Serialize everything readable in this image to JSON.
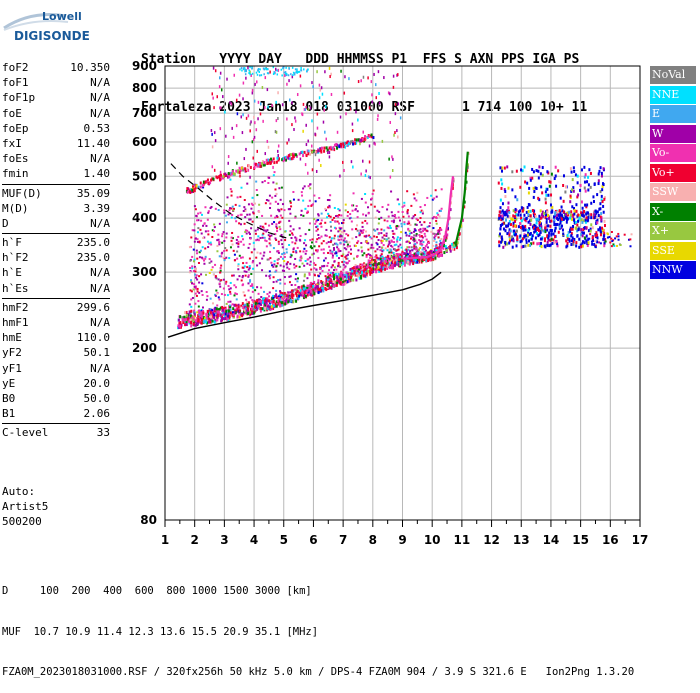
{
  "logo": {
    "line1": "Lowell",
    "line2": "DIGISONDE"
  },
  "header": {
    "labels": [
      "Station",
      "YYYY DAY",
      "DDD HHMMSS P1",
      "FFS S AXN PPS IGA PS"
    ],
    "values": [
      "Fortaleza",
      "2023 Jan18",
      "018 031000 RSF",
      "1 714 100 10+ 11"
    ]
  },
  "params": {
    "group1": [
      {
        "k": "foF2",
        "v": "10.350"
      },
      {
        "k": "foF1",
        "v": "N/A"
      },
      {
        "k": "foF1p",
        "v": "N/A"
      },
      {
        "k": "foE",
        "v": "N/A"
      },
      {
        "k": "foEp",
        "v": "0.53"
      },
      {
        "k": "fxI",
        "v": "11.40"
      },
      {
        "k": "foEs",
        "v": "N/A"
      },
      {
        "k": "fmin",
        "v": "1.40"
      }
    ],
    "group2": [
      {
        "k": "MUF(D)",
        "v": "35.09"
      },
      {
        "k": "M(D)",
        "v": "3.39"
      },
      {
        "k": "D",
        "v": "N/A"
      }
    ],
    "group3": [
      {
        "k": "h`F",
        "v": "235.0"
      },
      {
        "k": "h`F2",
        "v": "235.0"
      },
      {
        "k": "h`E",
        "v": "N/A"
      },
      {
        "k": "h`Es",
        "v": "N/A"
      }
    ],
    "group4": [
      {
        "k": "hmF2",
        "v": "299.6"
      },
      {
        "k": "hmF1",
        "v": "N/A"
      },
      {
        "k": "hmE",
        "v": "110.0"
      },
      {
        "k": "yF2",
        "v": "50.1"
      },
      {
        "k": "yF1",
        "v": "N/A"
      },
      {
        "k": "yE",
        "v": "20.0"
      },
      {
        "k": "B0",
        "v": "50.0"
      },
      {
        "k": "B1",
        "v": "2.06"
      }
    ],
    "group5": [
      {
        "k": "C-level",
        "v": "33"
      }
    ]
  },
  "auto": {
    "line1": "Auto:",
    "line2": "Artist5",
    "line3": "500200"
  },
  "legend": [
    {
      "label": "NoVal",
      "color": "#808080"
    },
    {
      "label": "NNE",
      "color": "#00e0ff"
    },
    {
      "label": "E",
      "color": "#40a8f0"
    },
    {
      "label": "W",
      "color": "#a000a8"
    },
    {
      "label": "Vo-",
      "color": "#f030b0"
    },
    {
      "label": "Vo+",
      "color": "#f00030"
    },
    {
      "label": "SSW",
      "color": "#f8b0b0"
    },
    {
      "label": "X-",
      "color": "#008000"
    },
    {
      "label": "X+",
      "color": "#98c840"
    },
    {
      "label": "SSE",
      "color": "#e8d800"
    },
    {
      "label": "NNW",
      "color": "#0000e0"
    }
  ],
  "chart_data": {
    "type": "scatter",
    "x_ticks": [
      "1",
      "2",
      "3",
      "4",
      "5",
      "6",
      "7",
      "8",
      "9",
      "10",
      "11",
      "12",
      "13",
      "14",
      "15",
      "16",
      "17"
    ],
    "y_ticks": [
      "80",
      "200",
      "300",
      "400",
      "500",
      "600",
      "700",
      "800",
      "900"
    ],
    "xlim": [
      1,
      17
    ],
    "y_scale": "log",
    "ylim": [
      80,
      900
    ],
    "grid": true,
    "curves": {
      "ordinary_trace": [
        [
          1.4,
          230
        ],
        [
          2,
          234
        ],
        [
          3,
          239
        ],
        [
          4,
          247
        ],
        [
          5,
          259
        ],
        [
          6,
          274
        ],
        [
          7,
          292
        ],
        [
          8,
          310
        ],
        [
          9,
          322
        ],
        [
          9.8,
          325
        ],
        [
          10.1,
          330
        ],
        [
          10.3,
          340
        ],
        [
          10.45,
          365
        ],
        [
          10.55,
          400
        ],
        [
          10.62,
          450
        ],
        [
          10.7,
          500
        ]
      ],
      "extraordinary_trace": [
        [
          1.6,
          232
        ],
        [
          3,
          240
        ],
        [
          5,
          260
        ],
        [
          7,
          290
        ],
        [
          8.5,
          315
        ],
        [
          10,
          330
        ],
        [
          10.8,
          350
        ],
        [
          11,
          400
        ],
        [
          11.1,
          460
        ],
        [
          11.15,
          520
        ],
        [
          11.2,
          570
        ]
      ],
      "f2_multiple_trace": [
        [
          1.7,
          465
        ],
        [
          2.5,
          490
        ],
        [
          3.5,
          520
        ],
        [
          4.5,
          545
        ],
        [
          5.5,
          565
        ],
        [
          6.5,
          585
        ],
        [
          7.5,
          610
        ],
        [
          8,
          625
        ]
      ],
      "profile_curve": [
        [
          1.1,
          212
        ],
        [
          2,
          222
        ],
        [
          3,
          229
        ],
        [
          4,
          236
        ],
        [
          5,
          244
        ],
        [
          6,
          251
        ],
        [
          7,
          258
        ],
        [
          8,
          265
        ],
        [
          9,
          273
        ],
        [
          9.6,
          281
        ],
        [
          10,
          289
        ],
        [
          10.3,
          299.6
        ]
      ],
      "dashed_curve": [
        [
          1.2,
          535
        ],
        [
          1.6,
          500
        ],
        [
          2.1,
          470
        ],
        [
          2.6,
          440
        ],
        [
          3.2,
          410
        ],
        [
          3.8,
          390
        ],
        [
          4.5,
          370
        ],
        [
          5.2,
          358
        ]
      ]
    }
  },
  "footer": {
    "line1": "D     100  200  400  600  800 1000 1500 3000 [km]",
    "line2": "MUF  10.7 10.9 11.4 12.3 13.6 15.5 20.9 35.1 [MHz]",
    "line3": "FZA0M_2023018031000.RSF / 320fx256h 50 kHz 5.0 km / DPS-4 FZA0M 904 / 3.9 S 321.6 E   Ion2Png 1.3.20"
  }
}
